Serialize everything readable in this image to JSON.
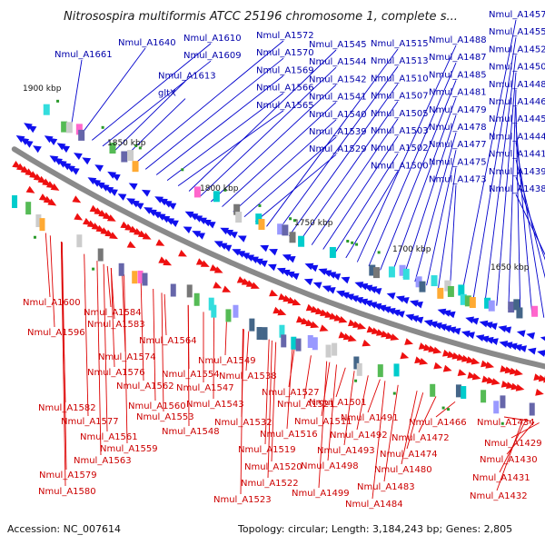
{
  "title": "Nitrosospira multiformis ATCC 25196 chromosome 1, complete s...",
  "footer": {
    "accession": "Accession: NC_007614",
    "topology": "Topology: circular; Length: 3,184,243 bp; Genes: 2,805"
  },
  "ticks": [
    "1900 kbp",
    "1850 kbp",
    "1800 kbp",
    "1750 kbp",
    "1700 kbp",
    "1650 kbp"
  ],
  "colors": {
    "forward": "#1010ee",
    "reverse": "#ee1010",
    "backbone": "#8a8a8a"
  },
  "blue_labels": [
    "Nmul_A1661",
    "Nmul_A1640",
    "Nmul_A1610",
    "Nmul_A1609",
    "Nmul_A1613",
    "gltX",
    "Nmul_A1572",
    "Nmul_A1570",
    "Nmul_A1569",
    "Nmul_A1566",
    "Nmul_A1565",
    "Nmul_A1545",
    "Nmul_A1544",
    "Nmul_A1542",
    "Nmul_A1541",
    "Nmul_A1540",
    "Nmul_A1539",
    "Nmul_A1529",
    "Nmul_A1515",
    "Nmul_A1513",
    "Nmul_A1510",
    "Nmul_A1507",
    "Nmul_A1505",
    "Nmul_A1503",
    "Nmul_A1502",
    "Nmul_A1500",
    "Nmul_A1488",
    "Nmul_A1487",
    "Nmul_A1485",
    "Nmul_A1481",
    "Nmul_A1479",
    "Nmul_A1478",
    "Nmul_A1477",
    "Nmul_A1475",
    "Nmul_A1473",
    "Nmul_A1457",
    "Nmul_A1455",
    "Nmul_A1452",
    "Nmul_A1450",
    "Nmul_A1448",
    "Nmul_A1446",
    "Nmul_A1445",
    "Nmul_A1444",
    "Nmul_A1441",
    "Nmul_A1439",
    "Nmul_A1438"
  ],
  "red_labels": [
    "Nmul_A1600",
    "Nmul_A1584",
    "Nmul_A1583",
    "Nmul_A1596",
    "Nmul_A1564",
    "Nmul_A1574",
    "Nmul_A1576",
    "Nmul_A1562",
    "Nmul_A1549",
    "Nmul_A1554",
    "Nmul_A1538",
    "Nmul_A1547",
    "Nmul_A1543",
    "Nmul_A1527",
    "Nmul_A1521",
    "Nmul_A1501",
    "Nmul_A1582",
    "Nmul_A1560",
    "Nmul_A1577",
    "Nmul_A1553",
    "Nmul_A1532",
    "Nmul_A1511",
    "Nmul_A1491",
    "Nmul_A1548",
    "Nmul_A1561",
    "Nmul_A1516",
    "Nmul_A1492",
    "Nmul_A1466",
    "Nmul_A1434",
    "Nmul_A1472",
    "Nmul_A1559",
    "Nmul_A1519",
    "Nmul_A1493",
    "Nmul_A1474",
    "Nmul_A1429",
    "Nmul_A1563",
    "Nmul_A1498",
    "Nmul_A1480",
    "Nmul_A1430",
    "Nmul_A1520",
    "Nmul_A1579",
    "Nmul_A1522",
    "Nmul_A1483",
    "Nmul_A1431",
    "Nmul_A1580",
    "Nmul_A1499",
    "Nmul_A1523",
    "Nmul_A1484",
    "Nmul_A1432"
  ]
}
